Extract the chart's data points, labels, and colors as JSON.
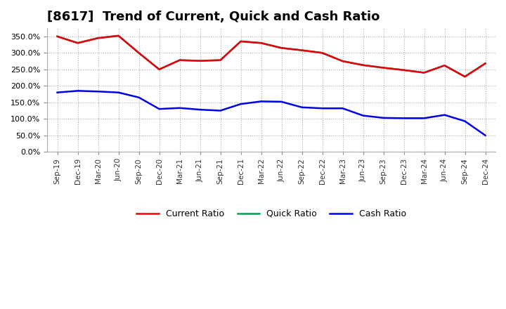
{
  "title": "[8617]  Trend of Current, Quick and Cash Ratio",
  "x_labels": [
    "Sep-19",
    "Dec-19",
    "Mar-20",
    "Jun-20",
    "Sep-20",
    "Dec-20",
    "Mar-21",
    "Jun-21",
    "Sep-21",
    "Dec-21",
    "Mar-22",
    "Jun-22",
    "Sep-22",
    "Dec-22",
    "Mar-23",
    "Jun-23",
    "Sep-23",
    "Dec-23",
    "Mar-24",
    "Jun-24",
    "Sep-24",
    "Dec-24"
  ],
  "current_ratio": [
    350.0,
    330.0,
    345.0,
    352.0,
    300.0,
    250.0,
    278.0,
    276.0,
    278.0,
    335.0,
    330.0,
    315.0,
    308.0,
    300.0,
    275.0,
    263.0,
    255.0,
    248.0,
    240.0,
    262.0,
    228.0,
    268.0
  ],
  "quick_ratio": [
    350.0,
    330.0,
    345.0,
    352.0,
    300.0,
    250.0,
    278.0,
    276.0,
    278.0,
    335.0,
    330.0,
    315.0,
    308.0,
    300.0,
    275.0,
    263.0,
    255.0,
    248.0,
    240.0,
    262.0,
    228.0,
    268.0
  ],
  "cash_ratio": [
    180.0,
    185.0,
    183.0,
    180.0,
    165.0,
    130.0,
    133.0,
    128.0,
    125.0,
    145.0,
    153.0,
    152.0,
    135.0,
    132.0,
    132.0,
    110.0,
    103.0,
    102.0,
    102.0,
    112.0,
    93.0,
    50.0
  ],
  "current_color": "#e8000d",
  "quick_color": "#00a050",
  "cash_color": "#0000e8",
  "bg_color": "#ffffff",
  "plot_bg_color": "#ffffff",
  "grid_color": "#aaaaaa",
  "ylim": [
    0,
    375
  ],
  "yticks": [
    0.0,
    50.0,
    100.0,
    150.0,
    200.0,
    250.0,
    300.0,
    350.0
  ],
  "line_width": 1.8,
  "title_fontsize": 13,
  "legend_labels": [
    "Current Ratio",
    "Quick Ratio",
    "Cash Ratio"
  ]
}
